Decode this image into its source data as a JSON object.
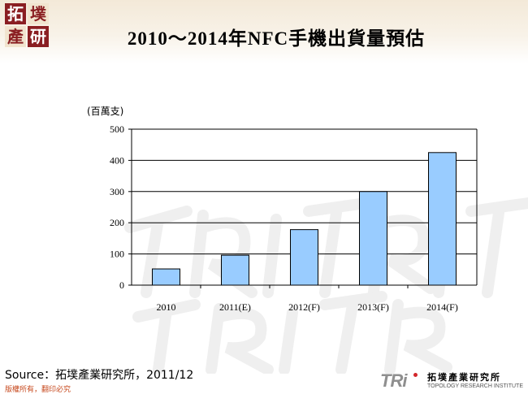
{
  "header": {
    "logo_chars": [
      "拓",
      "墣",
      "產",
      "研"
    ],
    "title": "2010～2014年NFC手機出貨量預估"
  },
  "colors": {
    "bar_fill": "#99ccff",
    "bar_stroke": "#000000",
    "logo_red": "#8a1e22",
    "copyright_orange": "#c74a1f"
  },
  "chart_data": {
    "type": "bar",
    "title": "2010～2014年NFC手機出貨量預估",
    "ylabel": "(百萬支)",
    "xlabel": "",
    "categories": [
      "2010",
      "2011(E)",
      "2012(F)",
      "2013(F)",
      "2014(F)"
    ],
    "values": [
      52,
      96,
      178,
      300,
      425
    ],
    "ylim": [
      0,
      500
    ],
    "yticks": [
      0,
      100,
      200,
      300,
      400,
      500
    ],
    "grid": true,
    "legend": "none"
  },
  "footer": {
    "source": "Source：拓墣產業研究所，2011/12",
    "copyright": "版權所有，翻印必究",
    "brand_mark": "TRi",
    "brand_cn": "拓墣產業研究所",
    "brand_en": "TOPOLOGY RESEARCH INSTITUTE"
  },
  "watermark": {
    "icon": "tri-watermark-icon"
  }
}
